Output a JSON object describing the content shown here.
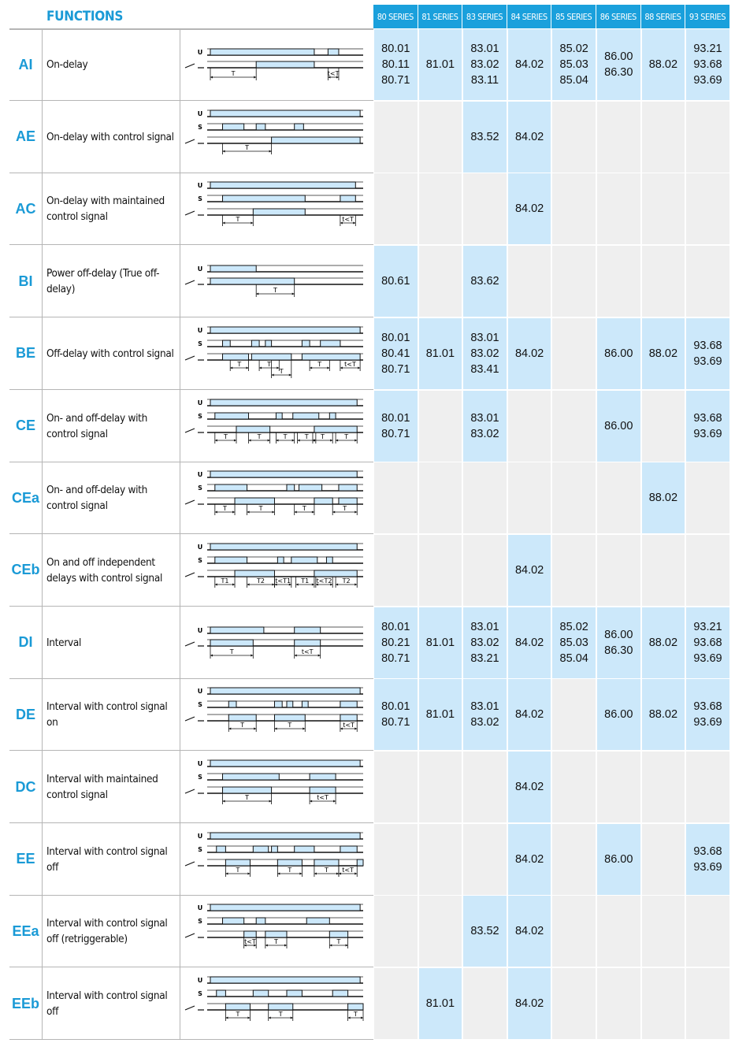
{
  "header": {
    "title": "FUNCTIONS",
    "series": [
      "80 SERIES",
      "81 SERIES",
      "83 SERIES",
      "84 SERIES",
      "85 SERIES",
      "86 SERIES",
      "88 SERIES",
      "93 SERIES"
    ]
  },
  "colors": {
    "accent": "#1aa0dc",
    "code": "#1a9ad6",
    "available": "#cce8fa",
    "unavailable": "#efefef"
  },
  "rows": [
    {
      "code": "AI",
      "desc": "On-delay",
      "signals": [
        "U"
      ],
      "labels": [
        "T",
        "t<T"
      ],
      "cells": [
        [
          "80.01",
          "80.11",
          "80.71"
        ],
        [
          "81.01"
        ],
        [
          "83.01",
          "83.02",
          "83.11"
        ],
        [
          "84.02"
        ],
        [
          "85.02",
          "85.03",
          "85.04"
        ],
        [
          "86.00",
          "86.30"
        ],
        [
          "88.02"
        ],
        [
          "93.21",
          "93.68",
          "93.69"
        ]
      ]
    },
    {
      "code": "AE",
      "desc": "On-delay with control signal",
      "signals": [
        "U",
        "S"
      ],
      "labels": [
        "T"
      ],
      "cells": [
        [],
        [],
        [
          "83.52"
        ],
        [
          "84.02"
        ],
        [],
        [],
        [],
        []
      ]
    },
    {
      "code": "AC",
      "desc": "On-delay with maintained control signal",
      "signals": [
        "U",
        "S"
      ],
      "labels": [
        "T",
        "t<T"
      ],
      "cells": [
        [],
        [],
        [],
        [
          "84.02"
        ],
        [],
        [],
        [],
        []
      ]
    },
    {
      "code": "BI",
      "desc": "Power off-delay (True off-delay)",
      "signals": [
        "U"
      ],
      "labels": [
        "T"
      ],
      "cells": [
        [
          "80.61"
        ],
        [],
        [
          "83.62"
        ],
        [],
        [],
        [],
        [],
        []
      ]
    },
    {
      "code": "BE",
      "desc": "Off-delay with control signal",
      "signals": [
        "U",
        "S"
      ],
      "labels": [
        "T",
        "T",
        "T",
        "T",
        "t<T"
      ],
      "cells": [
        [
          "80.01",
          "80.41",
          "80.71"
        ],
        [
          "81.01"
        ],
        [
          "83.01",
          "83.02",
          "83.41"
        ],
        [
          "84.02"
        ],
        [],
        [
          "86.00"
        ],
        [
          "88.02"
        ],
        [
          "93.68",
          "93.69"
        ]
      ]
    },
    {
      "code": "CE",
      "desc": "On- and off-delay with control signal",
      "signals": [
        "U",
        "S"
      ],
      "labels": [
        "T",
        "T",
        "T",
        "T",
        "T",
        "T"
      ],
      "cells": [
        [
          "80.01",
          "80.71"
        ],
        [],
        [
          "83.01",
          "83.02"
        ],
        [],
        [],
        [
          "86.00"
        ],
        [],
        [
          "93.68",
          "93.69"
        ]
      ]
    },
    {
      "code": "CEa",
      "desc": "On- and off-delay with control signal",
      "signals": [
        "U",
        "S"
      ],
      "labels": [
        "T",
        "T",
        "T",
        "T"
      ],
      "cells": [
        [],
        [],
        [],
        [],
        [],
        [],
        [
          "88.02"
        ],
        []
      ]
    },
    {
      "code": "CEb",
      "desc": "On and off independent delays with control signal",
      "signals": [
        "U",
        "S"
      ],
      "labels": [
        "T1",
        "T2",
        "t<T1",
        "T1",
        "t<T2",
        "T2"
      ],
      "cells": [
        [],
        [],
        [],
        [
          "84.02"
        ],
        [],
        [],
        [],
        []
      ]
    },
    {
      "code": "DI",
      "desc": "Interval",
      "signals": [
        "U"
      ],
      "labels": [
        "T",
        "t<T"
      ],
      "cells": [
        [
          "80.01",
          "80.21",
          "80.71"
        ],
        [
          "81.01"
        ],
        [
          "83.01",
          "83.02",
          "83.21"
        ],
        [
          "84.02"
        ],
        [
          "85.02",
          "85.03",
          "85.04"
        ],
        [
          "86.00",
          "86.30"
        ],
        [
          "88.02"
        ],
        [
          "93.21",
          "93.68",
          "93.69"
        ]
      ]
    },
    {
      "code": "DE",
      "desc": "Interval with control signal on",
      "signals": [
        "U",
        "S"
      ],
      "labels": [
        "T",
        "T",
        "t<T"
      ],
      "cells": [
        [
          "80.01",
          "80.71"
        ],
        [
          "81.01"
        ],
        [
          "83.01",
          "83.02"
        ],
        [
          "84.02"
        ],
        [],
        [
          "86.00"
        ],
        [
          "88.02"
        ],
        [
          "93.68",
          "93.69"
        ]
      ]
    },
    {
      "code": "DC",
      "desc": "Interval with maintained control signal",
      "signals": [
        "U",
        "S"
      ],
      "labels": [
        "T",
        "t<T"
      ],
      "cells": [
        [],
        [],
        [],
        [
          "84.02"
        ],
        [],
        [],
        [],
        []
      ]
    },
    {
      "code": "EE",
      "desc": "Interval with control signal off",
      "signals": [
        "U",
        "S"
      ],
      "labels": [
        "T",
        "T",
        "T",
        "t<T"
      ],
      "cells": [
        [],
        [],
        [],
        [
          "84.02"
        ],
        [],
        [
          "86.00"
        ],
        [],
        [
          "93.68",
          "93.69"
        ]
      ]
    },
    {
      "code": "EEa",
      "desc": "Interval with control signal off (retriggerable)",
      "signals": [
        "U",
        "S"
      ],
      "labels": [
        "t<T",
        "T",
        "T"
      ],
      "cells": [
        [],
        [],
        [
          "83.52"
        ],
        [
          "84.02"
        ],
        [],
        [],
        [],
        []
      ]
    },
    {
      "code": "EEb",
      "desc": "Interval with control signal off",
      "signals": [
        "U",
        "S"
      ],
      "labels": [
        "T",
        "T",
        "T"
      ],
      "cells": [
        [],
        [
          "81.01"
        ],
        [],
        [
          "84.02"
        ],
        [],
        [],
        [],
        []
      ]
    }
  ]
}
